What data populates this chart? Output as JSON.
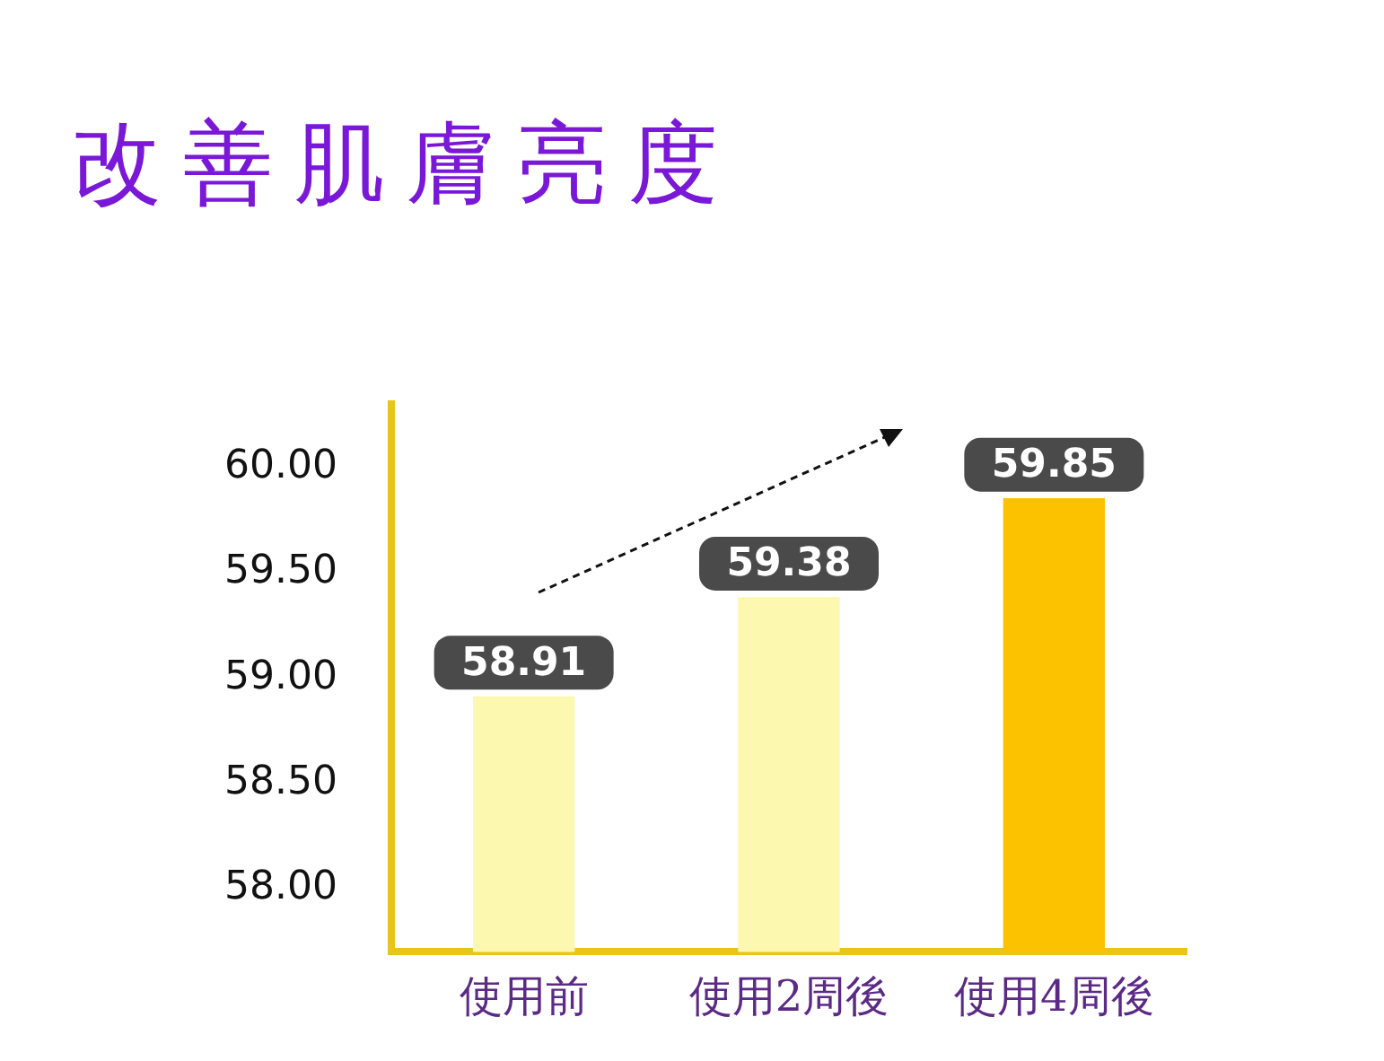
{
  "chart_data": {
    "type": "bar",
    "title": "改善肌膚亮度",
    "categories": [
      "使用前",
      "使用2周後",
      "使用4周後"
    ],
    "values": [
      58.91,
      59.38,
      59.85
    ],
    "colors": [
      "#fdf8b0",
      "#fdf8b0",
      "#fcc200"
    ],
    "ylim": [
      57.7,
      60.3
    ],
    "yticks": [
      {
        "value": 58,
        "label": "58.00"
      },
      {
        "value": 58.5,
        "label": "58.50"
      },
      {
        "value": 59,
        "label": "59.00"
      },
      {
        "value": 59.5,
        "label": "59.50"
      },
      {
        "value": 60,
        "label": "60.00"
      }
    ],
    "data_labels": true,
    "grid": false,
    "legend": false
  }
}
